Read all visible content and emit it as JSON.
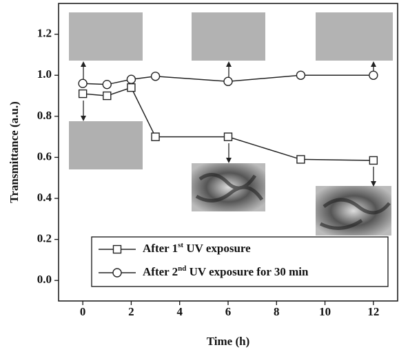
{
  "chart_data": {
    "type": "line",
    "x_label": "Time (h)",
    "y_label": "Transmittance (a.u.)",
    "xlim": [
      -1,
      13
    ],
    "xticks": [
      0,
      2,
      4,
      6,
      8,
      10,
      12
    ],
    "ylim": [
      -0.1,
      1.35
    ],
    "yticks": [
      {
        "value": 0,
        "label": "0.0"
      },
      0.2,
      0.4,
      0.6,
      0.8,
      {
        "value": 1,
        "label": "1.0"
      },
      1.2
    ],
    "grid": false,
    "legend": "lower right",
    "series": [
      {
        "name": "After 1st UV exposure",
        "color": "#222222",
        "marker": "square",
        "x": [
          0,
          1,
          2,
          3,
          6,
          9,
          12
        ],
        "values": [
          0.91,
          0.9,
          0.94,
          0.7,
          0.7,
          0.59,
          0.585
        ]
      },
      {
        "name": "After 2nd UV exposure for 30 min",
        "color": "#222222",
        "marker": "circle",
        "x": [
          0,
          1,
          2,
          3,
          6,
          9,
          12
        ],
        "values": [
          0.96,
          0.955,
          0.98,
          0.995,
          0.97,
          1.0,
          1.0
        ]
      }
    ]
  }
}
